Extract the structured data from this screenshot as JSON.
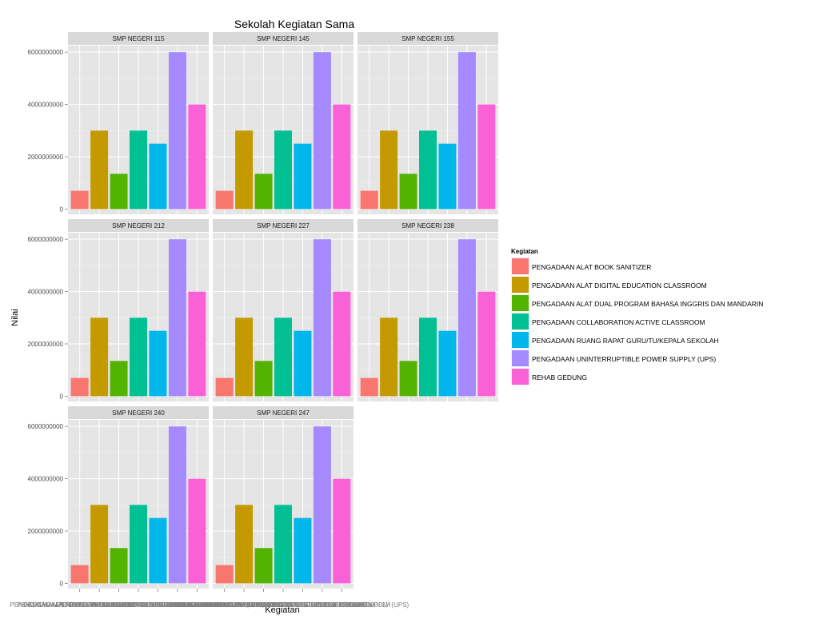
{
  "chart_data": {
    "type": "bar",
    "title": "Sekolah Kegiatan Sama",
    "xlabel": "Kegiatan",
    "ylabel": "Nilai",
    "ylim": [
      -200000000,
      6250000000
    ],
    "yticks": [
      0,
      2000000000,
      4000000000,
      6000000000
    ],
    "ytick_labels": [
      "0",
      "2000000000",
      "4000000000",
      "6000000000"
    ],
    "legend_title": "Kegiatan",
    "legend_position": "right",
    "categories": [
      "PENGADAAN ALAT BOOK SANITIZER",
      "PENGADAAN ALAT DIGITAL EDUCATION CLASSROOM",
      "PENGADAAN ALAT DUAL PROGRAM BAHASA INGGRIS DAN MANDARIN",
      "PENGADAAN COLLABORATION ACTIVE CLASSROOM",
      "PENGADAAN RUANG RAPAT GURU/TU/KEPALA SEKOLAH",
      "PENGADAAN UNINTERRUPTIBLE POWER SUPPLY (UPS)",
      "REHAB GEDUNG"
    ],
    "colors": [
      "#F8766D",
      "#C49A00",
      "#53B400",
      "#00C094",
      "#00B6EB",
      "#A58AFF",
      "#FB61D7"
    ],
    "panels": [
      {
        "name": "SMP NEGERI 115",
        "values": [
          700000000,
          3000000000,
          1350000000,
          3000000000,
          2500000000,
          6000000000,
          4000000000
        ]
      },
      {
        "name": "SMP NEGERI 145",
        "values": [
          700000000,
          3000000000,
          1350000000,
          3000000000,
          2500000000,
          6000000000,
          4000000000
        ]
      },
      {
        "name": "SMP NEGERI 155",
        "values": [
          700000000,
          3000000000,
          1350000000,
          3000000000,
          2500000000,
          6000000000,
          4000000000
        ]
      },
      {
        "name": "SMP NEGERI 212",
        "values": [
          700000000,
          3000000000,
          1350000000,
          3000000000,
          2500000000,
          6000000000,
          4000000000
        ]
      },
      {
        "name": "SMP NEGERI 227",
        "values": [
          700000000,
          3000000000,
          1350000000,
          3000000000,
          2500000000,
          6000000000,
          4000000000
        ]
      },
      {
        "name": "SMP NEGERI 238",
        "values": [
          700000000,
          3000000000,
          1350000000,
          3000000000,
          2500000000,
          6000000000,
          4000000000
        ]
      },
      {
        "name": "SMP NEGERI 240",
        "values": [
          700000000,
          3000000000,
          1350000000,
          3000000000,
          2500000000,
          6000000000,
          4000000000
        ]
      },
      {
        "name": "SMP NEGERI 247",
        "values": [
          700000000,
          3000000000,
          1350000000,
          3000000000,
          2500000000,
          6000000000,
          4000000000
        ]
      }
    ]
  }
}
